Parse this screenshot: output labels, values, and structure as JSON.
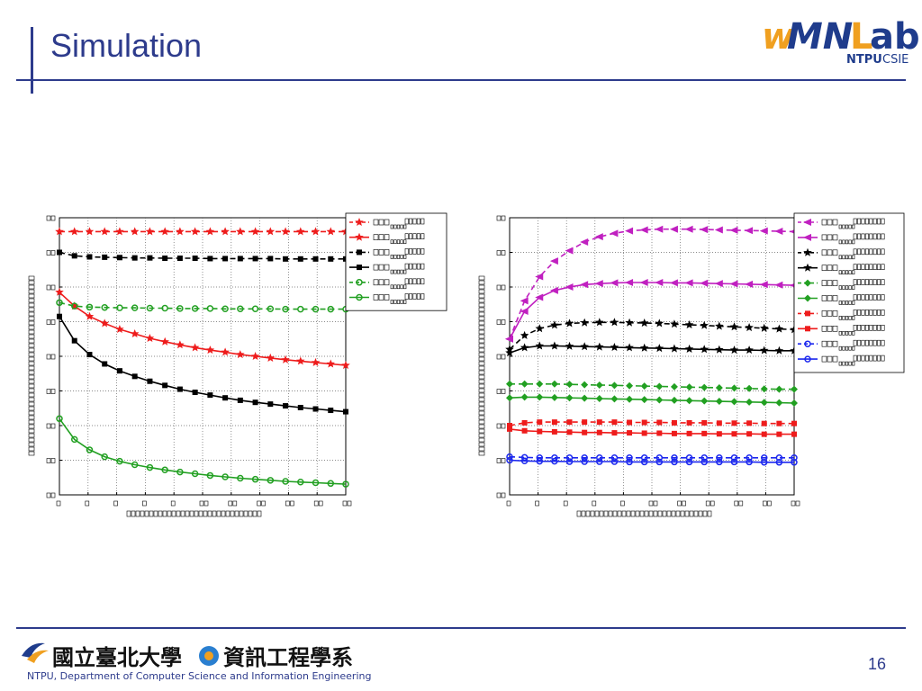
{
  "slide": {
    "title": "Simulation",
    "page_number": "16",
    "logo": {
      "text": "wMNLab",
      "sub": "NTPU",
      "sub2": "CSIE"
    },
    "footer": {
      "school_cn": "國立臺北大學",
      "dept_cn": "資訊工程學系",
      "dept_en": "NTPU, Department of Computer Science and Information Engineering"
    },
    "colors": {
      "accent": "#2d3b8c",
      "logo_orange": "#f0a020",
      "logo_blue": "#1f3c8c"
    }
  },
  "chart_data": [
    {
      "type": "line",
      "x": [
        1,
        2,
        3,
        4,
        5,
        6,
        7,
        8,
        9,
        10,
        11,
        12,
        13,
        14,
        15,
        16,
        17,
        18,
        19,
        20
      ],
      "ylim": [
        0,
        8
      ],
      "xlim": [
        1,
        20
      ],
      "grid": true,
      "legend_position": "top-right",
      "series": [
        {
          "color": "#ee1c1c",
          "marker": "star",
          "dash": true,
          "values": [
            7.6,
            7.6,
            7.6,
            7.6,
            7.6,
            7.6,
            7.6,
            7.6,
            7.6,
            7.6,
            7.6,
            7.6,
            7.6,
            7.6,
            7.6,
            7.6,
            7.6,
            7.6,
            7.6,
            7.6
          ]
        },
        {
          "color": "#ee1c1c",
          "marker": "star",
          "dash": false,
          "values": [
            5.85,
            5.45,
            5.15,
            4.95,
            4.78,
            4.65,
            4.52,
            4.42,
            4.33,
            4.25,
            4.18,
            4.12,
            4.05,
            4.0,
            3.95,
            3.9,
            3.86,
            3.82,
            3.78,
            3.74
          ]
        },
        {
          "color": "#000000",
          "marker": "square",
          "dash": true,
          "values": [
            7.0,
            6.9,
            6.87,
            6.86,
            6.85,
            6.84,
            6.84,
            6.83,
            6.83,
            6.83,
            6.82,
            6.82,
            6.82,
            6.82,
            6.82,
            6.81,
            6.81,
            6.81,
            6.81,
            6.81
          ]
        },
        {
          "color": "#000000",
          "marker": "square",
          "dash": false,
          "values": [
            5.15,
            4.45,
            4.05,
            3.78,
            3.58,
            3.42,
            3.28,
            3.16,
            3.05,
            2.96,
            2.88,
            2.8,
            2.73,
            2.67,
            2.62,
            2.57,
            2.52,
            2.48,
            2.44,
            2.4
          ]
        },
        {
          "color": "#22a022",
          "marker": "circle",
          "dash": true,
          "values": [
            5.55,
            5.45,
            5.42,
            5.41,
            5.4,
            5.4,
            5.39,
            5.39,
            5.38,
            5.38,
            5.38,
            5.37,
            5.37,
            5.37,
            5.37,
            5.36,
            5.36,
            5.36,
            5.36,
            5.36
          ]
        },
        {
          "color": "#22a022",
          "marker": "circle",
          "dash": false,
          "values": [
            2.2,
            1.6,
            1.3,
            1.1,
            0.97,
            0.87,
            0.79,
            0.72,
            0.66,
            0.61,
            0.56,
            0.52,
            0.48,
            0.45,
            0.42,
            0.39,
            0.37,
            0.35,
            0.33,
            0.31
          ]
        }
      ]
    },
    {
      "type": "line",
      "x": [
        1,
        2,
        3,
        4,
        5,
        6,
        7,
        8,
        9,
        10,
        11,
        12,
        13,
        14,
        15,
        16,
        17,
        18,
        19,
        20
      ],
      "ylim": [
        0,
        8
      ],
      "xlim": [
        1,
        20
      ],
      "grid": true,
      "legend_position": "top-right",
      "series": [
        {
          "color": "#c020c0",
          "marker": "triangle-left",
          "dash": true,
          "values": [
            4.5,
            5.6,
            6.3,
            6.75,
            7.05,
            7.3,
            7.45,
            7.55,
            7.62,
            7.65,
            7.67,
            7.67,
            7.67,
            7.66,
            7.65,
            7.64,
            7.63,
            7.62,
            7.61,
            7.6
          ]
        },
        {
          "color": "#c020c0",
          "marker": "triangle-left",
          "dash": false,
          "values": [
            4.5,
            5.3,
            5.7,
            5.9,
            6.0,
            6.07,
            6.1,
            6.12,
            6.13,
            6.13,
            6.13,
            6.12,
            6.12,
            6.11,
            6.1,
            6.09,
            6.08,
            6.07,
            6.06,
            6.05
          ]
        },
        {
          "color": "#000000",
          "marker": "star",
          "dash": true,
          "values": [
            4.2,
            4.6,
            4.8,
            4.9,
            4.95,
            4.97,
            4.98,
            4.98,
            4.97,
            4.96,
            4.95,
            4.93,
            4.91,
            4.89,
            4.87,
            4.85,
            4.83,
            4.81,
            4.79,
            4.77
          ]
        },
        {
          "color": "#000000",
          "marker": "star",
          "dash": false,
          "values": [
            4.1,
            4.25,
            4.3,
            4.3,
            4.29,
            4.28,
            4.27,
            4.26,
            4.25,
            4.24,
            4.23,
            4.22,
            4.21,
            4.2,
            4.19,
            4.18,
            4.18,
            4.17,
            4.16,
            4.16
          ]
        },
        {
          "color": "#22a022",
          "marker": "diamond",
          "dash": true,
          "values": [
            3.2,
            3.2,
            3.2,
            3.2,
            3.19,
            3.18,
            3.17,
            3.16,
            3.15,
            3.14,
            3.13,
            3.12,
            3.11,
            3.1,
            3.09,
            3.08,
            3.07,
            3.06,
            3.05,
            3.05
          ]
        },
        {
          "color": "#22a022",
          "marker": "diamond",
          "dash": false,
          "values": [
            2.8,
            2.82,
            2.82,
            2.81,
            2.8,
            2.79,
            2.78,
            2.77,
            2.76,
            2.75,
            2.74,
            2.73,
            2.72,
            2.71,
            2.7,
            2.69,
            2.68,
            2.67,
            2.66,
            2.65
          ]
        },
        {
          "color": "#ee1c1c",
          "marker": "square",
          "dash": true,
          "values": [
            2.0,
            2.08,
            2.1,
            2.1,
            2.1,
            2.1,
            2.1,
            2.1,
            2.09,
            2.09,
            2.09,
            2.08,
            2.08,
            2.08,
            2.07,
            2.07,
            2.07,
            2.06,
            2.06,
            2.06
          ]
        },
        {
          "color": "#ee1c1c",
          "marker": "square",
          "dash": false,
          "values": [
            1.9,
            1.85,
            1.83,
            1.82,
            1.81,
            1.8,
            1.8,
            1.79,
            1.79,
            1.78,
            1.78,
            1.77,
            1.77,
            1.77,
            1.76,
            1.76,
            1.76,
            1.75,
            1.75,
            1.75
          ]
        },
        {
          "color": "#1c28ee",
          "marker": "circle",
          "dash": true,
          "values": [
            1.1,
            1.08,
            1.07,
            1.07,
            1.07,
            1.07,
            1.07,
            1.07,
            1.07,
            1.07,
            1.07,
            1.07,
            1.07,
            1.07,
            1.07,
            1.07,
            1.07,
            1.07,
            1.07,
            1.07
          ]
        },
        {
          "color": "#1c28ee",
          "marker": "circle",
          "dash": false,
          "values": [
            1.0,
            0.98,
            0.97,
            0.97,
            0.96,
            0.96,
            0.96,
            0.96,
            0.95,
            0.95,
            0.95,
            0.95,
            0.95,
            0.95,
            0.95,
            0.95,
            0.95,
            0.94,
            0.94,
            0.94
          ]
        }
      ]
    }
  ]
}
